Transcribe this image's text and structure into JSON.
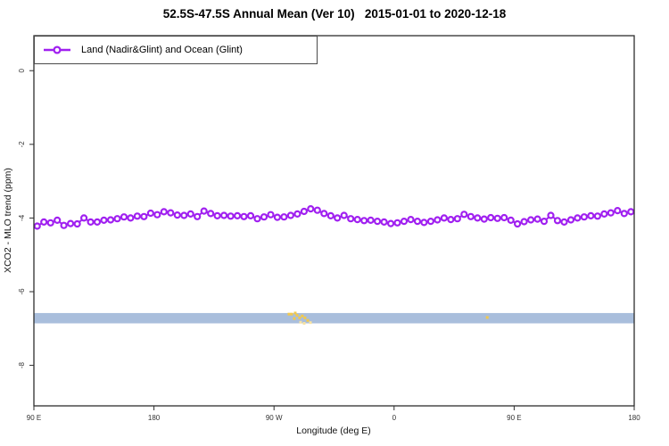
{
  "chart_data": {
    "type": "line",
    "title": "52.5S-47.5S Annual Mean (Ver 10)   2015-01-01 to 2020-12-18",
    "xlabel": "Longitude (deg E)",
    "ylabel": "XCO2 - MLO trend (ppm)",
    "xlim": [
      90,
      540
    ],
    "ylim": [
      -9.1,
      0.95
    ],
    "grid": false,
    "legend_position": "top-left",
    "x_ticks": [
      {
        "value": 90,
        "label": "90 E"
      },
      {
        "value": 180,
        "label": "180"
      },
      {
        "value": 270,
        "label": "90 W"
      },
      {
        "value": 360,
        "label": "0"
      },
      {
        "value": 450,
        "label": "90 E"
      },
      {
        "value": 540,
        "label": "180"
      }
    ],
    "y_ticks": [
      {
        "value": 0,
        "label": "0"
      },
      {
        "value": -2,
        "label": "-2"
      },
      {
        "value": -4,
        "label": "-4"
      },
      {
        "value": -6,
        "label": "-6"
      },
      {
        "value": -8,
        "label": "-8"
      }
    ],
    "x_start": 92.5,
    "x_step": 5,
    "n_points": 90,
    "series": [
      {
        "name": "Land (Nadir&Glint) and Ocean (Glint)",
        "color": "#A020F0",
        "marker": "open-circle",
        "values": [
          -4.22,
          -4.11,
          -4.13,
          -4.06,
          -4.2,
          -4.15,
          -4.16,
          -4.0,
          -4.11,
          -4.11,
          -4.06,
          -4.05,
          -4.02,
          -3.97,
          -4.0,
          -3.95,
          -3.96,
          -3.87,
          -3.91,
          -3.83,
          -3.86,
          -3.92,
          -3.93,
          -3.89,
          -3.96,
          -3.81,
          -3.88,
          -3.94,
          -3.93,
          -3.95,
          -3.94,
          -3.96,
          -3.94,
          -4.02,
          -3.97,
          -3.91,
          -3.98,
          -3.97,
          -3.93,
          -3.89,
          -3.82,
          -3.75,
          -3.79,
          -3.88,
          -3.94,
          -4.0,
          -3.93,
          -4.02,
          -4.04,
          -4.07,
          -4.06,
          -4.09,
          -4.11,
          -4.15,
          -4.13,
          -4.09,
          -4.04,
          -4.09,
          -4.12,
          -4.09,
          -4.05,
          -4.0,
          -4.04,
          -4.02,
          -3.9,
          -3.96,
          -4.0,
          -4.03,
          -3.99,
          -4.01,
          -3.99,
          -4.06,
          -4.16,
          -4.1,
          -4.05,
          -4.03,
          -4.09,
          -3.93,
          -4.07,
          -4.11,
          -4.05,
          -4.0,
          -3.97,
          -3.94,
          -3.95,
          -3.89,
          -3.86,
          -3.8,
          -3.88,
          -3.83
        ]
      }
    ],
    "band": {
      "top": -6.58,
      "bottom": -6.86,
      "color": "#A9BEDC",
      "mark_color": "#F2C94C",
      "mark_light_color": "#F8E3A2",
      "land_marks": [
        {
          "x": 281.2,
          "v": -6.61
        },
        {
          "x": 283.2,
          "v": -6.61
        },
        {
          "x": 285.9,
          "v": -6.58
        },
        {
          "x": 285.2,
          "v": -6.73
        },
        {
          "x": 287.2,
          "v": -6.64
        },
        {
          "x": 289.2,
          "v": -6.71
        },
        {
          "x": 289.9,
          "v": -6.83,
          "light": true
        },
        {
          "x": 291.2,
          "v": -6.66
        },
        {
          "x": 292.6,
          "v": -6.86,
          "light": true
        },
        {
          "x": 293.2,
          "v": -6.71
        },
        {
          "x": 295.3,
          "v": -6.78
        },
        {
          "x": 297.3,
          "v": -6.84,
          "light": true
        },
        {
          "x": 429.8,
          "v": -6.7
        }
      ]
    },
    "axis_color": "#2e2e2e",
    "tick_label_color": "#333333"
  }
}
